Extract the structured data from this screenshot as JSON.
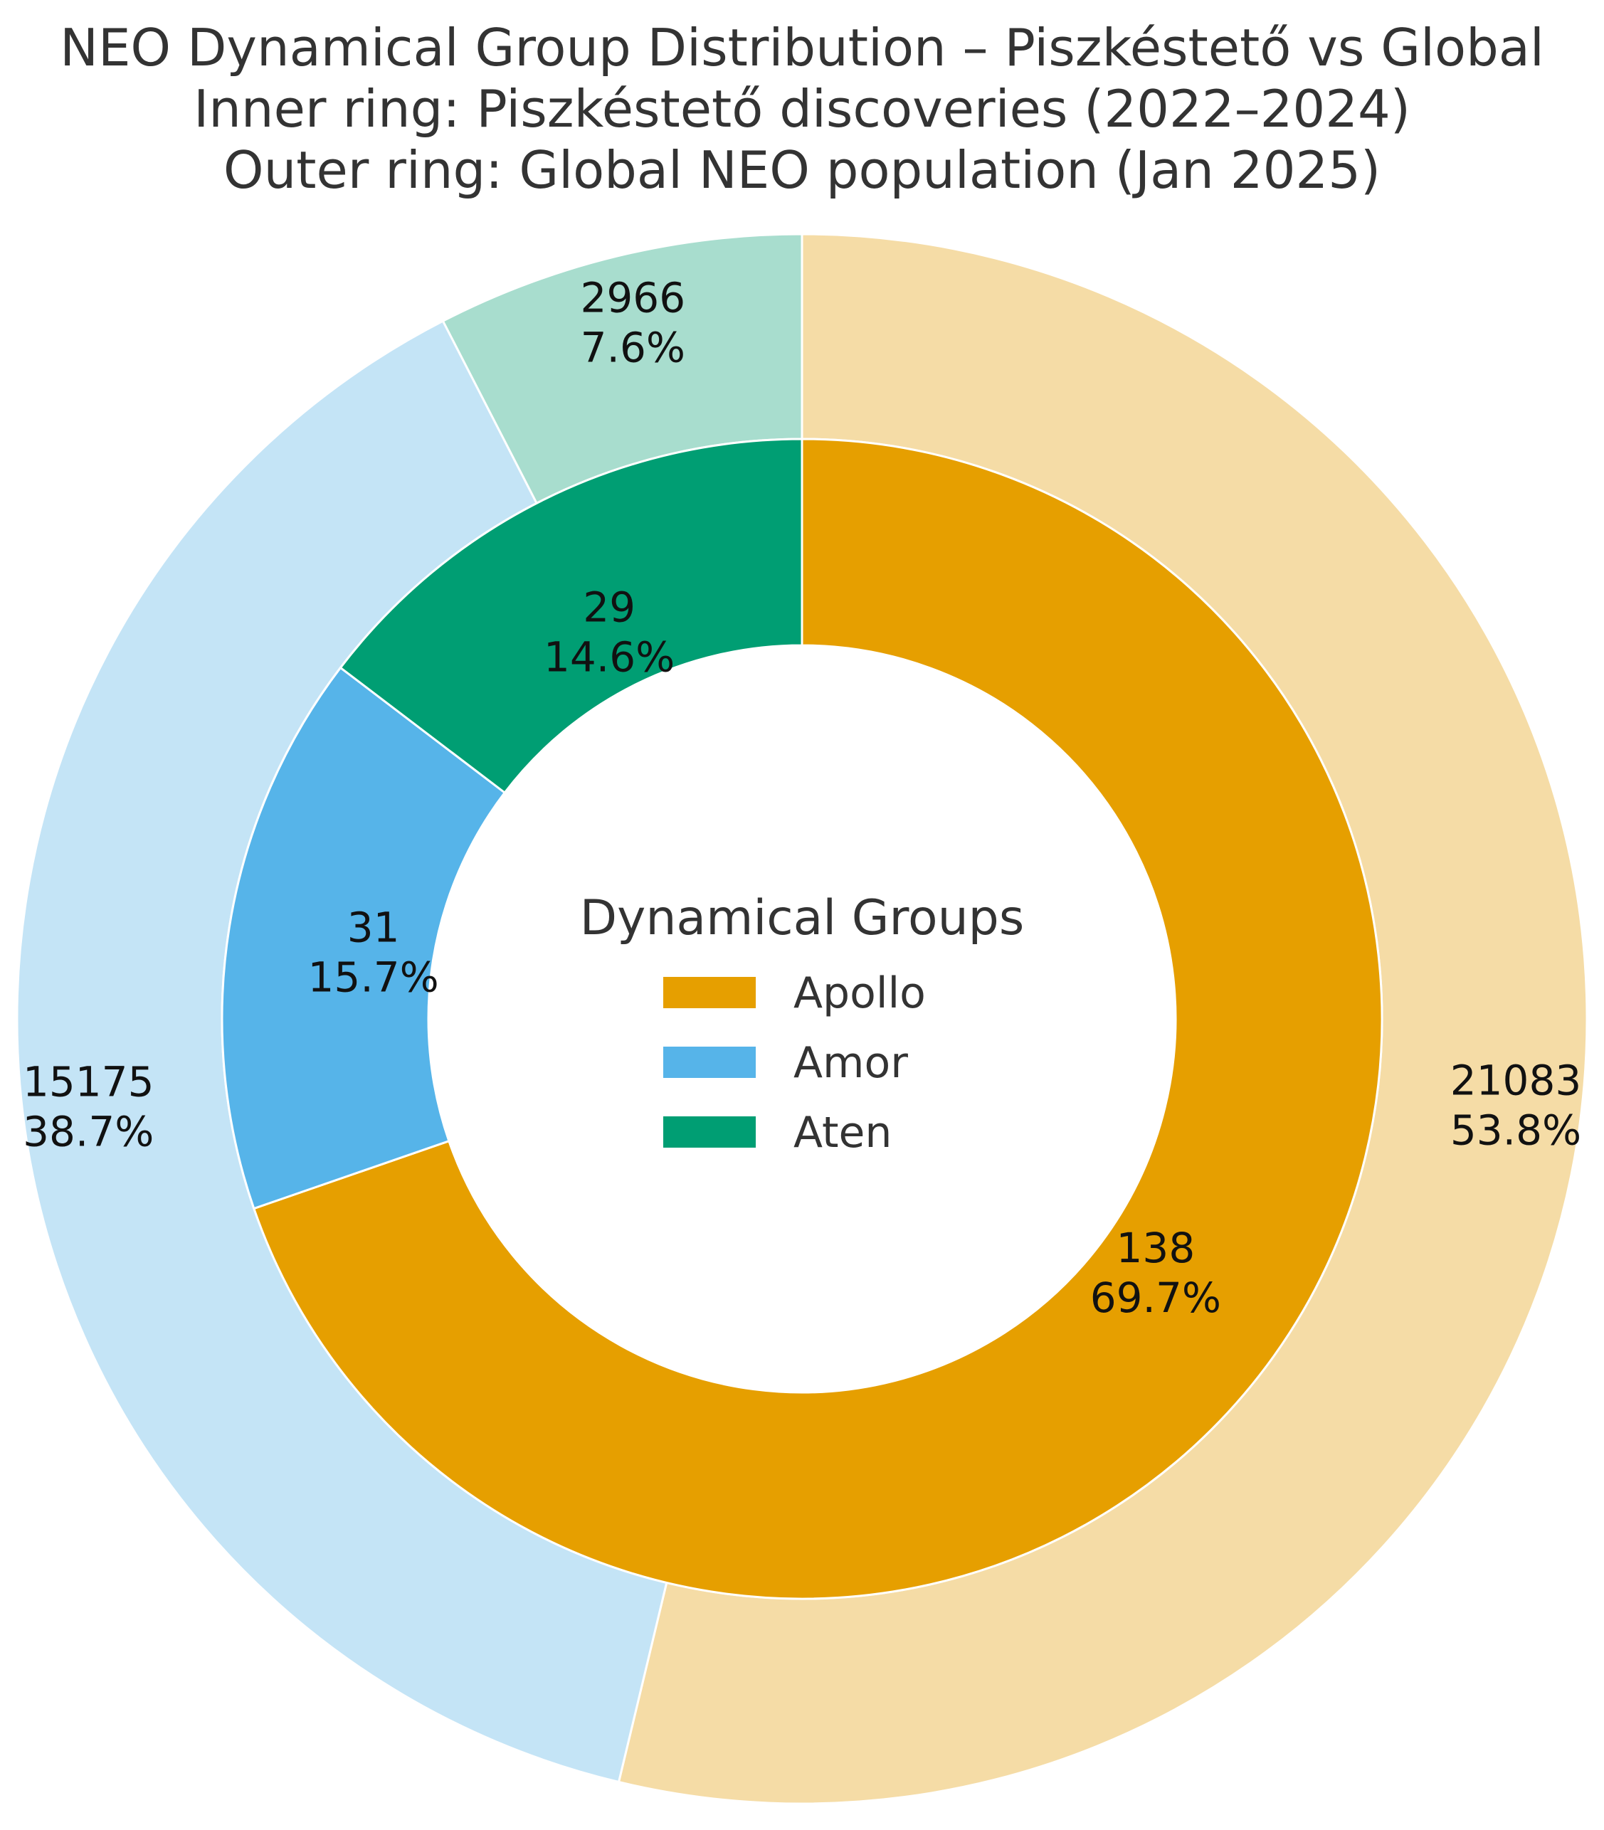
{
  "chart_data": {
    "type": "pie",
    "subtype": "nested-donut",
    "title": [
      "NEO Dynamical Group Distribution – Piszkéstető vs Global",
      "Inner ring: Piszkéstető discoveries (2022–2024)",
      "Outer ring: Global NEO population (Jan 2025)"
    ],
    "categories": [
      "Apollo",
      "Amor",
      "Aten"
    ],
    "series": [
      {
        "name": "Piszkéstető discoveries (2022–2024)",
        "ring": "inner",
        "values": [
          138,
          31,
          29
        ],
        "value_labels": [
          "138",
          "31",
          "29"
        ],
        "percent_labels": [
          "69.7%",
          "15.7%",
          "14.6%"
        ],
        "colors": [
          "#E69F00",
          "#56B4E9",
          "#009E73"
        ]
      },
      {
        "name": "Global NEO population (Jan 2025)",
        "ring": "outer",
        "values": [
          21083,
          15175,
          2966
        ],
        "value_labels": [
          "21083",
          "15175",
          "2966"
        ],
        "percent_labels": [
          "53.8%",
          "38.7%",
          "7.6%"
        ],
        "colors": [
          "#F5DCA6",
          "#C4E4F6",
          "#A8DDCE"
        ]
      }
    ],
    "legend": {
      "title": "Dynamical Groups",
      "entries": [
        "Apollo",
        "Amor",
        "Aten"
      ],
      "colors": [
        "#E69F00",
        "#56B4E9",
        "#009E73"
      ],
      "location": "center"
    },
    "start": "top",
    "direction": "clockwise"
  }
}
